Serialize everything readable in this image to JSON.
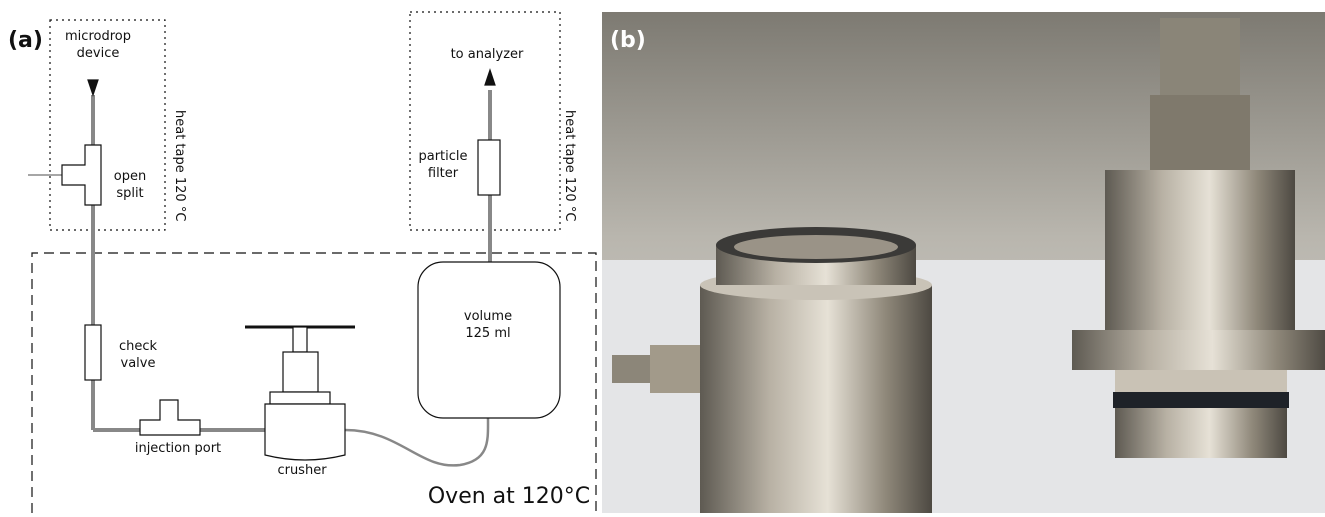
{
  "panel_a": {
    "label": "(a)",
    "nodes": [
      {
        "lines": [
          "microdrop",
          "device"
        ]
      },
      {
        "lines": [
          "open",
          "split"
        ]
      },
      {
        "lines": [
          "heat tape 120 °C"
        ]
      },
      {
        "lines": [
          "to analyzer"
        ]
      },
      {
        "lines": [
          "particle",
          "filter"
        ]
      },
      {
        "lines": [
          "heat tape 120 °C"
        ]
      },
      {
        "lines": [
          "volume",
          "125 ml"
        ]
      },
      {
        "lines": [
          "check",
          "valve"
        ]
      },
      {
        "lines": [
          "injection port"
        ]
      },
      {
        "lines": [
          "crusher"
        ]
      },
      {
        "lines": [
          "Oven at 120°C"
        ]
      }
    ]
  },
  "panel_b": {
    "label": "(b)"
  }
}
